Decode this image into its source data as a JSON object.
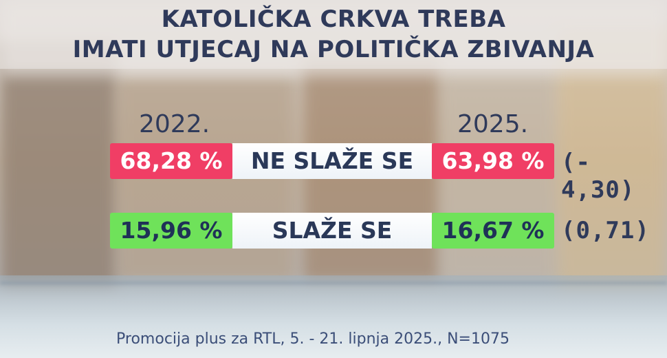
{
  "title": {
    "line1": "KATOLIČKA CRKVA TREBA",
    "line2": "IMATI UTJECAJ NA POLITIČKA ZBIVANJA"
  },
  "years": {
    "left": "2022.",
    "right": "2025."
  },
  "rows": [
    {
      "left_value": "68,28 %",
      "label": "NE SLAŽE SE",
      "right_value": "63,98 %",
      "change": "(- 4,30)",
      "color": "#f03e65"
    },
    {
      "left_value": "15,96 %",
      "label": "SLAŽE SE",
      "right_value": "16,67 %",
      "change": "(0,71)",
      "color": "#6fe25a"
    }
  ],
  "source": "Promocija plus za RTL, 5. - 21. lipnja 2025., N=1075"
}
